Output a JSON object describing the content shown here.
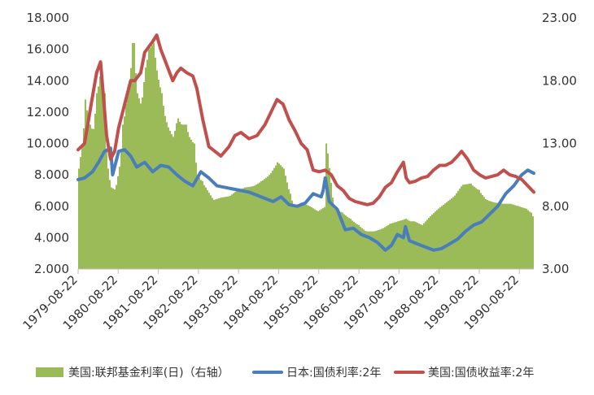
{
  "chart_data": {
    "type": "bar+line",
    "title": "",
    "xlabel": "",
    "ylabel": "",
    "left_axis": {
      "ylim": [
        2.0,
        18.0
      ],
      "ticks": [
        "2.000",
        "4.000",
        "6.000",
        "8.000",
        "10.000",
        "12.000",
        "14.000",
        "16.000",
        "18.000"
      ]
    },
    "right_axis": {
      "ylim": [
        3.0,
        23.0
      ],
      "ticks": [
        "3.00",
        "8.00",
        "13.00",
        "18.00",
        "23.00"
      ]
    },
    "x_ticks": [
      "1979-08-22",
      "1980-08-22",
      "1981-08-22",
      "1982-08-22",
      "1983-08-22",
      "1984-08-22",
      "1985-08-22",
      "1986-08-22",
      "1987-08-22",
      "1988-08-22",
      "1989-08-22",
      "1990-08-22"
    ],
    "xlim": [
      1979.64,
      1991.0
    ],
    "legend_position": "bottom",
    "grid": false,
    "series": [
      {
        "name": "美国:联邦基金利率(日)（右轴）",
        "kind": "bar",
        "axis": "right",
        "color": "#9bbb59",
        "x": [
          1979.64,
          1979.75,
          1979.8,
          1979.9,
          1980.0,
          1980.1,
          1980.2,
          1980.27,
          1980.35,
          1980.45,
          1980.55,
          1980.65,
          1980.75,
          1980.85,
          1980.95,
          1981.0,
          1981.1,
          1981.2,
          1981.3,
          1981.4,
          1981.5,
          1981.6,
          1981.7,
          1981.8,
          1981.9,
          1982.0,
          1982.1,
          1982.2,
          1982.3,
          1982.4,
          1982.5,
          1982.6,
          1982.7,
          1982.8,
          1982.9,
          1983.0,
          1983.2,
          1983.4,
          1983.6,
          1983.8,
          1984.0,
          1984.2,
          1984.4,
          1984.6,
          1984.75,
          1984.9,
          1985.0,
          1985.2,
          1985.4,
          1985.6,
          1985.8,
          1985.82,
          1986.0,
          1986.2,
          1986.4,
          1986.6,
          1986.8,
          1987.0,
          1987.2,
          1987.4,
          1987.6,
          1987.8,
          1987.9,
          1988.0,
          1988.2,
          1988.4,
          1988.6,
          1988.8,
          1989.0,
          1989.2,
          1989.4,
          1989.6,
          1989.8,
          1990.0,
          1990.2,
          1990.4,
          1990.6,
          1990.8,
          1990.9,
          1991.0
        ],
        "values": [
          11.0,
          13.5,
          16.5,
          14.5,
          14.0,
          17.0,
          19.0,
          17.0,
          11.0,
          9.5,
          9.3,
          11.0,
          14.5,
          17.0,
          19.0,
          21.0,
          17.0,
          16.0,
          19.0,
          20.5,
          21.0,
          18.5,
          17.0,
          15.0,
          14.0,
          13.5,
          15.0,
          14.5,
          14.5,
          13.5,
          13.0,
          10.5,
          10.0,
          9.5,
          9.0,
          8.5,
          8.7,
          8.8,
          9.3,
          9.5,
          9.6,
          10.0,
          10.5,
          11.5,
          11.0,
          9.0,
          8.0,
          8.3,
          8.0,
          7.6,
          8.0,
          13.0,
          7.8,
          7.5,
          7.0,
          6.5,
          6.0,
          6.0,
          6.2,
          6.6,
          6.8,
          7.0,
          6.8,
          6.8,
          6.5,
          7.2,
          7.8,
          8.3,
          8.8,
          9.7,
          9.8,
          9.3,
          8.5,
          8.3,
          8.2,
          8.2,
          8.0,
          7.8,
          7.5,
          7.0
        ]
      },
      {
        "name": "日本:国债利率:2年",
        "kind": "line",
        "axis": "left",
        "color": "#4a7ebb",
        "x": [
          1979.64,
          1979.8,
          1980.0,
          1980.15,
          1980.3,
          1980.45,
          1980.5,
          1980.65,
          1980.8,
          1980.95,
          1981.1,
          1981.3,
          1981.5,
          1981.7,
          1981.9,
          1982.1,
          1982.3,
          1982.5,
          1982.7,
          1982.9,
          1983.1,
          1983.3,
          1983.5,
          1983.7,
          1983.9,
          1984.1,
          1984.3,
          1984.5,
          1984.7,
          1984.9,
          1985.1,
          1985.3,
          1985.5,
          1985.7,
          1985.75,
          1985.8,
          1985.9,
          1986.1,
          1986.3,
          1986.5,
          1986.7,
          1986.9,
          1987.1,
          1987.3,
          1987.45,
          1987.6,
          1987.75,
          1987.8,
          1987.9,
          1988.1,
          1988.3,
          1988.5,
          1988.7,
          1988.9,
          1989.1,
          1989.3,
          1989.5,
          1989.7,
          1989.9,
          1990.1,
          1990.3,
          1990.5,
          1990.7,
          1990.85,
          1991.0
        ],
        "values": [
          7.7,
          7.8,
          8.2,
          8.8,
          9.5,
          9.7,
          8.0,
          9.5,
          9.6,
          9.2,
          8.5,
          8.8,
          8.2,
          8.6,
          8.5,
          8.0,
          7.6,
          7.3,
          8.2,
          7.8,
          7.3,
          7.2,
          7.1,
          7.0,
          6.9,
          6.7,
          6.5,
          6.3,
          6.6,
          6.1,
          6.0,
          6.2,
          6.8,
          6.6,
          7.0,
          7.8,
          6.3,
          5.8,
          4.5,
          4.6,
          4.2,
          4.0,
          3.7,
          3.2,
          3.5,
          4.2,
          4.0,
          4.7,
          3.8,
          3.6,
          3.4,
          3.2,
          3.3,
          3.6,
          3.9,
          4.4,
          4.8,
          5.0,
          5.5,
          6.0,
          6.8,
          7.3,
          8.0,
          8.3,
          8.1
        ]
      },
      {
        "name": "美国:国债收益率:2年",
        "kind": "line",
        "axis": "left",
        "color": "#c0504d",
        "x": [
          1979.64,
          1979.8,
          1979.9,
          1980.0,
          1980.1,
          1980.2,
          1980.27,
          1980.35,
          1980.45,
          1980.55,
          1980.65,
          1980.8,
          1980.95,
          1981.05,
          1981.2,
          1981.3,
          1981.5,
          1981.6,
          1981.7,
          1981.85,
          1982.0,
          1982.1,
          1982.2,
          1982.35,
          1982.5,
          1982.6,
          1982.75,
          1982.9,
          1983.05,
          1983.2,
          1983.4,
          1983.55,
          1983.7,
          1983.9,
          1984.1,
          1984.3,
          1984.45,
          1984.6,
          1984.75,
          1984.9,
          1985.05,
          1985.2,
          1985.35,
          1985.5,
          1985.65,
          1985.8,
          1985.95,
          1986.1,
          1986.25,
          1986.4,
          1986.55,
          1986.7,
          1986.85,
          1987.0,
          1987.15,
          1987.3,
          1987.45,
          1987.6,
          1987.75,
          1987.82,
          1987.9,
          1988.05,
          1988.2,
          1988.35,
          1988.5,
          1988.65,
          1988.8,
          1988.95,
          1989.1,
          1989.2,
          1989.35,
          1989.5,
          1989.65,
          1989.8,
          1989.95,
          1990.1,
          1990.25,
          1990.4,
          1990.55,
          1990.7,
          1990.85,
          1991.0
        ],
        "values": [
          9.6,
          10.0,
          11.5,
          13.0,
          14.5,
          15.2,
          13.0,
          10.5,
          9.0,
          9.5,
          11.0,
          12.5,
          14.0,
          14.0,
          14.5,
          15.8,
          16.5,
          16.9,
          16.0,
          15.0,
          14.0,
          14.5,
          14.8,
          14.5,
          14.3,
          13.5,
          11.5,
          9.8,
          9.5,
          9.2,
          9.8,
          10.5,
          10.7,
          10.3,
          10.5,
          11.2,
          12.0,
          12.8,
          12.5,
          11.5,
          10.8,
          10.0,
          9.6,
          8.3,
          8.2,
          8.3,
          8.0,
          7.3,
          7.0,
          6.5,
          6.3,
          6.2,
          6.1,
          6.2,
          6.6,
          7.2,
          7.5,
          8.2,
          8.8,
          7.8,
          7.5,
          7.6,
          7.8,
          7.9,
          8.3,
          8.6,
          8.6,
          8.8,
          9.2,
          9.5,
          9.0,
          8.3,
          8.0,
          7.8,
          7.9,
          8.0,
          8.3,
          8.0,
          7.9,
          7.7,
          7.3,
          6.9
        ]
      }
    ]
  }
}
